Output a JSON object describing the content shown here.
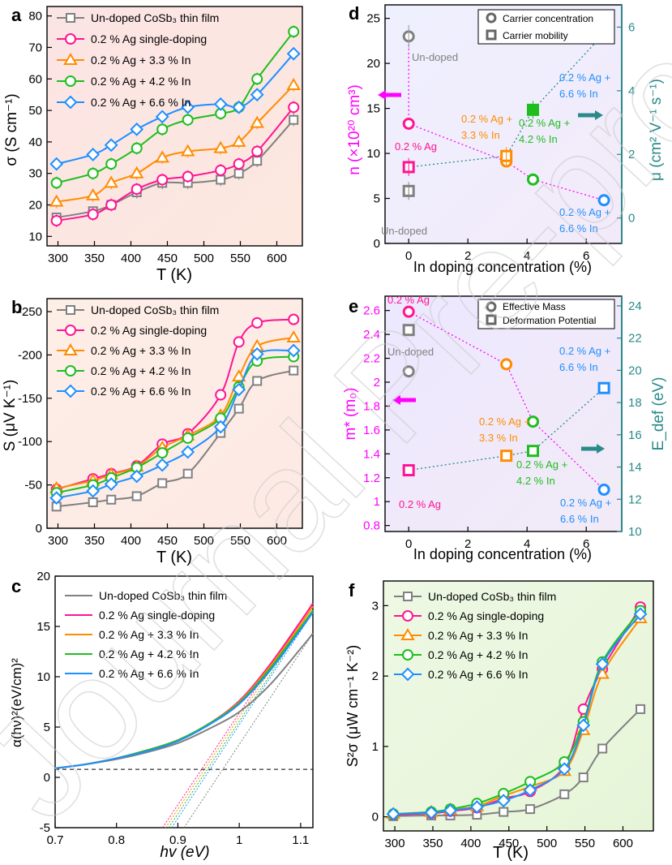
{
  "watermark": "Journal Pre-proof",
  "colors": {
    "undoped": "#808080",
    "ag": "#ff1493",
    "in33": "#ff8c00",
    "in42": "#1ebe1e",
    "in66": "#1e8fff",
    "magenta": "#ff00ff",
    "teal": "#2a8a8a",
    "darkgray": "#777777"
  },
  "chart_data": [
    {
      "id": "a",
      "panel_label": "a",
      "type": "line",
      "xlabel": "T (K)",
      "ylabel": "σ (S cm⁻¹)",
      "xlim": [
        285,
        635
      ],
      "ylim": [
        7,
        83
      ],
      "xticks": [
        300,
        350,
        400,
        450,
        500,
        550,
        600
      ],
      "yticks": [
        10,
        20,
        30,
        40,
        50,
        60,
        70,
        80
      ],
      "x": [
        298,
        348,
        373,
        408,
        443,
        478,
        523,
        548,
        573,
        623
      ],
      "legend": [
        "Un-doped CoSb₃ thin film",
        "0.2 % Ag single-doping",
        "0.2 % Ag + 3.3 % In",
        "0.2 % Ag + 4.2 % In",
        "0.2 % Ag + 6.6 % In"
      ],
      "series": [
        {
          "name": "Un-doped CoSb₃ thin film",
          "marker": "square",
          "color": "#808080",
          "values": [
            16,
            18,
            20,
            24,
            27,
            27,
            28,
            30,
            34,
            47
          ],
          "err": [
            1.5,
            1.5,
            1.5,
            2,
            2,
            2,
            2,
            2,
            2,
            2
          ]
        },
        {
          "name": "0.2 % Ag single-doping",
          "marker": "circle",
          "color": "#ff1493",
          "values": [
            15,
            17,
            20,
            25,
            28,
            29,
            31,
            33,
            37,
            51
          ],
          "err": [
            2,
            2,
            2,
            2,
            2,
            2,
            2,
            2,
            2,
            2
          ]
        },
        {
          "name": "0.2 % Ag + 3.3 % In",
          "marker": "triangle",
          "color": "#ff8c00",
          "values": [
            21,
            23,
            27,
            30,
            35,
            37,
            38,
            40,
            46,
            58
          ],
          "err": [
            2,
            2,
            2,
            2,
            2,
            2,
            2,
            2,
            2,
            2
          ]
        },
        {
          "name": "0.2 % Ag + 4.2 % In",
          "marker": "circle",
          "color": "#1ebe1e",
          "values": [
            27,
            30,
            33,
            38,
            44,
            47,
            49,
            51,
            60,
            75
          ],
          "err": [
            2,
            2,
            2,
            2,
            2,
            2,
            2,
            2,
            2,
            2
          ]
        },
        {
          "name": "0.2 % Ag + 6.6 % In",
          "marker": "diamond",
          "color": "#1e8fff",
          "values": [
            33,
            36,
            39,
            44,
            48,
            51,
            52,
            51,
            55,
            68
          ],
          "err": [
            2,
            2,
            2,
            2,
            2,
            2,
            2,
            2,
            2,
            2
          ]
        }
      ]
    },
    {
      "id": "b",
      "panel_label": "b",
      "type": "line",
      "xlabel": "T (K)",
      "ylabel": "S (μV K⁻¹)",
      "xlim": [
        285,
        635
      ],
      "ylim": [
        0,
        -265
      ],
      "xticks": [
        300,
        350,
        400,
        450,
        500,
        550,
        600
      ],
      "yticks": [
        0,
        -50,
        -100,
        -150,
        -200,
        -250
      ],
      "x": [
        298,
        348,
        373,
        408,
        443,
        478,
        523,
        548,
        573,
        623
      ],
      "legend": [
        "Un-doped CoSb₃ thin film",
        "0.2 % Ag single-doping",
        "0.2 % Ag + 3.3 % In",
        "0.2 % Ag + 4.2 % In",
        "0.2 % Ag + 6.6 % In"
      ],
      "series": [
        {
          "name": "Un-doped CoSb₃ thin film",
          "marker": "square",
          "color": "#808080",
          "values": [
            -25,
            -30,
            -33,
            -37,
            -52,
            -63,
            -110,
            -138,
            -170,
            -182
          ]
        },
        {
          "name": "0.2 % Ag single-doping",
          "marker": "circle",
          "color": "#ff1493",
          "values": [
            -45,
            -57,
            -63,
            -72,
            -97,
            -109,
            -154,
            -215,
            -237,
            -241
          ]
        },
        {
          "name": "0.2 % Ag + 3.3 % In",
          "marker": "triangle",
          "color": "#ff8c00",
          "values": [
            -46,
            -55,
            -62,
            -71,
            -93,
            -107,
            -130,
            -175,
            -210,
            -220
          ]
        },
        {
          "name": "0.2 % Ag + 4.2 % In",
          "marker": "circle",
          "color": "#1ebe1e",
          "values": [
            -41,
            -50,
            -58,
            -70,
            -87,
            -104,
            -127,
            -163,
            -193,
            -198
          ]
        },
        {
          "name": "0.2 % Ag + 6.6 % In",
          "marker": "diamond",
          "color": "#1e8fff",
          "values": [
            -35,
            -43,
            -51,
            -60,
            -73,
            -88,
            -117,
            -160,
            -201,
            -205
          ]
        }
      ]
    },
    {
      "id": "c",
      "panel_label": "c",
      "type": "line",
      "xlabel": "hv (eV)",
      "ylabel": "α(hν)²(eV/cm)²",
      "xlim": [
        0.7,
        1.12
      ],
      "ylim": [
        -5,
        20
      ],
      "xticks": [
        0.7,
        0.8,
        0.9,
        1.0,
        1.1
      ],
      "yticks": [
        -5,
        0,
        5,
        10,
        15,
        20
      ],
      "legend": [
        "Un-doped CoSb₃ thin film",
        "0.2 % Ag  single-doping",
        "0.2 % Ag + 3.3 % In",
        "0.2 % Ag + 4.2 % In",
        "0.2 % Ag + 6.6 % In"
      ],
      "baseline": 0.8,
      "series": [
        {
          "name": "Un-doped CoSb₃ thin film",
          "color": "#808080",
          "x": [
            0.7,
            0.75,
            0.8,
            0.85,
            0.9,
            0.95,
            1.0,
            1.05,
            1.1,
            1.12
          ],
          "values": [
            0.9,
            1.3,
            1.8,
            2.5,
            3.4,
            4.8,
            6.5,
            9.2,
            12.8,
            14.3
          ]
        },
        {
          "name": "0.2 % Ag  single-doping",
          "color": "#ff1493",
          "x": [
            0.7,
            0.75,
            0.8,
            0.85,
            0.9,
            0.95,
            1.0,
            1.05,
            1.1,
            1.12
          ],
          "values": [
            0.9,
            1.3,
            1.9,
            2.7,
            3.7,
            5.3,
            7.6,
            11.2,
            15.5,
            17.3
          ]
        },
        {
          "name": "0.2 % Ag + 3.3 % In",
          "color": "#ff8c00",
          "x": [
            0.7,
            0.75,
            0.8,
            0.85,
            0.9,
            0.95,
            1.0,
            1.05,
            1.1,
            1.12
          ],
          "values": [
            0.9,
            1.3,
            1.9,
            2.7,
            3.7,
            5.3,
            7.5,
            11.0,
            15.2,
            17.0
          ]
        },
        {
          "name": "0.2 % Ag + 4.2 % In",
          "color": "#1ebe1e",
          "x": [
            0.7,
            0.75,
            0.8,
            0.85,
            0.9,
            0.95,
            1.0,
            1.05,
            1.1,
            1.12
          ],
          "values": [
            0.9,
            1.3,
            1.9,
            2.7,
            3.7,
            5.3,
            7.4,
            10.8,
            14.9,
            16.6
          ]
        },
        {
          "name": "0.2 % Ag + 6.6 % In",
          "color": "#1e8fff",
          "x": [
            0.7,
            0.75,
            0.8,
            0.85,
            0.9,
            0.95,
            1.0,
            1.05,
            1.1,
            1.12
          ],
          "values": [
            0.9,
            1.3,
            1.9,
            2.6,
            3.6,
            5.2,
            7.3,
            10.6,
            14.7,
            16.4
          ]
        }
      ],
      "tangents": [
        {
          "color": "#ff1493",
          "x": [
            0.875,
            1.12
          ],
          "values": [
            -5,
            17.3
          ]
        },
        {
          "color": "#ff8c00",
          "x": [
            0.88,
            1.12
          ],
          "values": [
            -5,
            17.0
          ]
        },
        {
          "color": "#1ebe1e",
          "x": [
            0.885,
            1.12
          ],
          "values": [
            -5,
            16.6
          ]
        },
        {
          "color": "#1e8fff",
          "x": [
            0.89,
            1.12
          ],
          "values": [
            -5,
            16.4
          ]
        },
        {
          "color": "#808080",
          "x": [
            0.91,
            1.12
          ],
          "values": [
            -5,
            14.3
          ]
        }
      ]
    },
    {
      "id": "d",
      "panel_label": "d",
      "type": "scatter",
      "xlabel": "In doping concentration (%)",
      "ylabel": "n (×10²⁰ cm³)",
      "y2label": "μ (cm² V⁻¹ s⁻¹)",
      "xlim": [
        -0.8,
        7.2
      ],
      "ylim": [
        0,
        26.5
      ],
      "y2lim": [
        -0.8,
        6.7
      ],
      "xticks": [
        0,
        2,
        4,
        6
      ],
      "yticks": [
        0,
        5,
        10,
        15,
        20,
        25
      ],
      "y2ticks": [
        0,
        2,
        4,
        6
      ],
      "legend": [
        "Carrier concentration",
        "Carrier mobility"
      ],
      "x": [
        0,
        0,
        3.3,
        4.2,
        6.6
      ],
      "concentration": [
        23,
        13.3,
        9.1,
        7.1,
        4.8
      ],
      "mobility": [
        0.85,
        1.6,
        1.95,
        3.4,
        5.8
      ],
      "point_colors": [
        "#808080",
        "#ff1493",
        "#ff8c00",
        "#1ebe1e",
        "#1e8fff"
      ],
      "annotations": [
        {
          "text": "Un-doped",
          "color": "#808080"
        },
        {
          "text": "0.2 % Ag",
          "color": "#ff1493"
        },
        {
          "text": "0.2 % Ag +",
          "color": "#ff8c00"
        },
        {
          "text": "3.3 % In",
          "color": "#ff8c00"
        },
        {
          "text": "0.2 % Ag +",
          "color": "#1ebe1e"
        },
        {
          "text": "4.2 % In",
          "color": "#1ebe1e"
        },
        {
          "text": "0.2 % Ag +",
          "color": "#1e8fff"
        },
        {
          "text": "6.6 % In",
          "color": "#1e8fff"
        },
        {
          "text": "0.2 % Ag +",
          "color": "#1e8fff"
        },
        {
          "text": "6.6 % In",
          "color": "#1e8fff"
        },
        {
          "text": "Un-doped",
          "color": "#808080"
        }
      ]
    },
    {
      "id": "e",
      "panel_label": "e",
      "type": "scatter",
      "xlabel": "In doping concentration (%)",
      "ylabel": "m* (m₀)",
      "y2label": "E_def (eV)",
      "xlim": [
        -0.8,
        7.2
      ],
      "ylim": [
        0.75,
        2.72
      ],
      "y2lim": [
        10,
        24.6
      ],
      "xticks": [
        0,
        2,
        4,
        6
      ],
      "yticks": [
        0.8,
        1.0,
        1.2,
        1.4,
        1.6,
        1.8,
        2.0,
        2.2,
        2.4,
        2.6
      ],
      "y2ticks": [
        10,
        12,
        14,
        16,
        18,
        20,
        22,
        24
      ],
      "legend": [
        "Effective Mass",
        "Deformation Potential"
      ],
      "x": [
        0,
        0,
        3.3,
        4.2,
        6.6
      ],
      "effective_mass": [
        2.09,
        2.59,
        2.15,
        1.67,
        1.1
      ],
      "deformation_potential": [
        22.5,
        13.8,
        14.7,
        15.0,
        18.9
      ],
      "point_colors": [
        "#808080",
        "#ff1493",
        "#ff8c00",
        "#1ebe1e",
        "#1e8fff"
      ],
      "annotations": [
        {
          "text": "0.2 % Ag",
          "color": "#ff1493"
        },
        {
          "text": "Un-doped",
          "color": "#808080"
        },
        {
          "text": "0.2 % Ag +",
          "color": "#1e8fff"
        },
        {
          "text": "6.6 % In",
          "color": "#1e8fff"
        },
        {
          "text": "0.2 % Ag +",
          "color": "#ff8c00"
        },
        {
          "text": "3.3 % In",
          "color": "#ff8c00"
        },
        {
          "text": "0.2 % Ag +",
          "color": "#1ebe1e"
        },
        {
          "text": "4.2 % In",
          "color": "#1ebe1e"
        },
        {
          "text": "0.2 % Ag",
          "color": "#ff1493"
        },
        {
          "text": "0.2 % Ag +",
          "color": "#1e8fff"
        },
        {
          "text": "6.6 % In",
          "color": "#1e8fff"
        }
      ]
    },
    {
      "id": "f",
      "panel_label": "f",
      "type": "line",
      "xlabel": "T (K)",
      "ylabel": "S²σ (μW cm⁻¹ K⁻²)",
      "xlim": [
        285,
        640
      ],
      "ylim": [
        -0.2,
        3.35
      ],
      "xticks": [
        300,
        350,
        400,
        450,
        500,
        550,
        600
      ],
      "yticks": [
        0,
        1,
        2,
        3
      ],
      "x": [
        298,
        348,
        373,
        408,
        443,
        478,
        523,
        548,
        573,
        623
      ],
      "legend": [
        "Un-doped CoSb₃ thin film",
        "0.2 % Ag single-doping",
        "0.2 % Ag + 3.3 % In",
        "0.2 % Ag + 4.2 % In",
        "0.2 % Ag + 6.6 % In"
      ],
      "series": [
        {
          "name": "Un-doped CoSb₃ thin film",
          "marker": "square",
          "color": "#808080",
          "values": [
            0.01,
            0.02,
            0.02,
            0.03,
            0.07,
            0.11,
            0.32,
            0.56,
            0.97,
            1.53
          ]
        },
        {
          "name": "0.2 % Ag single-doping",
          "marker": "circle",
          "color": "#ff1493",
          "values": [
            0.03,
            0.05,
            0.08,
            0.13,
            0.26,
            0.36,
            0.72,
            1.53,
            2.1,
            2.98
          ]
        },
        {
          "name": "0.2 % Ag + 3.3 % In",
          "marker": "triangle",
          "color": "#ff8c00",
          "values": [
            0.04,
            0.07,
            0.1,
            0.15,
            0.3,
            0.43,
            0.65,
            1.23,
            2.03,
            2.82
          ]
        },
        {
          "name": "0.2 % Ag + 4.2 % In",
          "marker": "circle",
          "color": "#1ebe1e",
          "values": [
            0.04,
            0.07,
            0.11,
            0.19,
            0.33,
            0.5,
            0.78,
            1.35,
            2.2,
            2.93
          ]
        },
        {
          "name": "0.2 % Ag + 6.6 % In",
          "marker": "diamond",
          "color": "#1e8fff",
          "values": [
            0.04,
            0.06,
            0.09,
            0.14,
            0.23,
            0.38,
            0.68,
            1.3,
            2.17,
            2.88
          ]
        }
      ]
    }
  ]
}
